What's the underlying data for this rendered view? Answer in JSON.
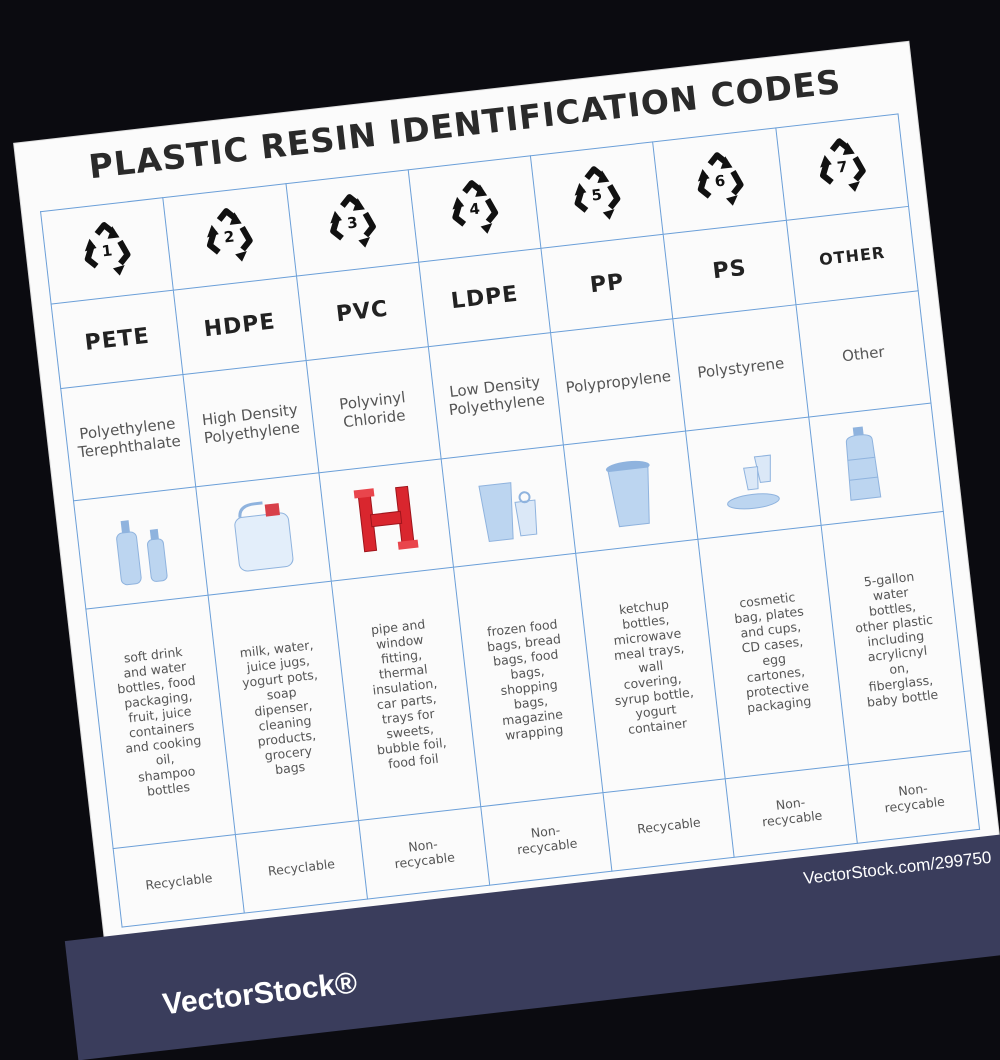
{
  "title": "PLASTIC RESIN IDENTIFICATION CODES",
  "accent_grid_color": "#6b9fd8",
  "codes": [
    {
      "number": "1",
      "abbr": "PETE",
      "name": "Polyethylene Terephthalate",
      "image": "water-bottles-icon",
      "uses": "soft drink and water bottles, food packaging, fruit, juice containers and cooking oil, shampoo bottles",
      "status": "Recyclable"
    },
    {
      "number": "2",
      "abbr": "HDPE",
      "name": "High Density Polyethylene",
      "image": "milk-jug-icon",
      "uses": "milk, water, juice jugs, yogurt pots, soap dipenser, cleaning products, grocery bags",
      "status": "Recyclable"
    },
    {
      "number": "3",
      "abbr": "PVC",
      "name": "Polyvinyl Chloride",
      "image": "red-pipe-fitting-icon",
      "uses": "pipe and window fitting, thermal insulation, car parts, trays for sweets, bubble foil, food foil",
      "status": "Non-recycable"
    },
    {
      "number": "4",
      "abbr": "LDPE",
      "name": "Low Density Polyethylene",
      "image": "plastic-bag-icon",
      "uses": "frozen food bags, bread bags, food bags, shopping bags, magazine wrapping",
      "status": "Non-recycable"
    },
    {
      "number": "5",
      "abbr": "PP",
      "name": "Polypropylene",
      "image": "container-cup-icon",
      "uses": "ketchup bottles, microwave meal trays, wall covering, syrup bottle, yogurt container",
      "status": "Recycable"
    },
    {
      "number": "6",
      "abbr": "PS",
      "name": "Polystyrene",
      "image": "plate-cups-icon",
      "uses": "cosmetic bag, plates and cups, CD cases, egg cartones, protective packaging",
      "status": "Non-recycable"
    },
    {
      "number": "7",
      "abbr": "OTHER",
      "name": "Other",
      "image": "water-jug-icon",
      "uses": "5-gallon water bottles, other plastic including acrylicnyl on, fiberglass, baby bottle",
      "status": "Non-recycable"
    }
  ],
  "watermark": {
    "url": "VectorStock.com/299750",
    "logo": "VectorStock®"
  }
}
